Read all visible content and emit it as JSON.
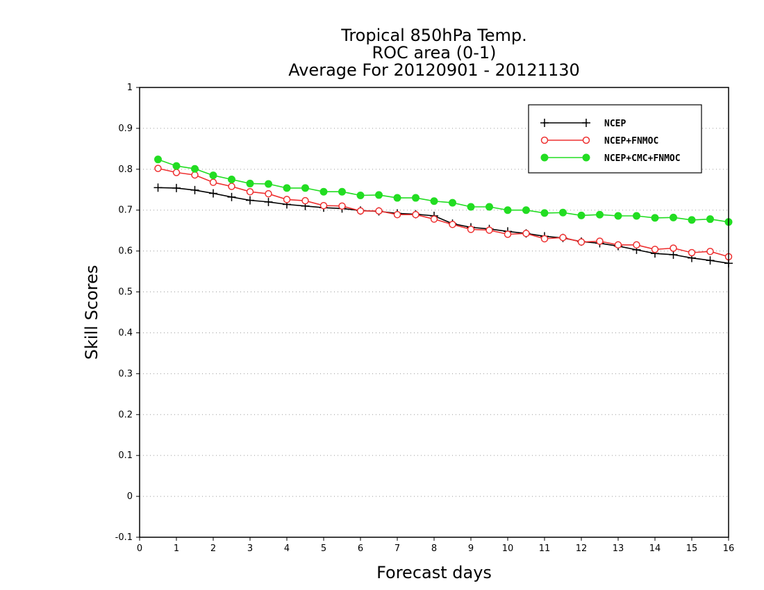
{
  "chart_data": {
    "type": "line",
    "title": [
      "Tropical 850hPa Temp.",
      "ROC area (0-1)",
      "Average For 20120901 - 20121130"
    ],
    "xlabel": "Forecast days",
    "ylabel": "Skill Scores",
    "xlim": [
      0,
      16
    ],
    "ylim": [
      -0.1,
      1
    ],
    "xticks": [
      0,
      1,
      2,
      3,
      4,
      5,
      6,
      7,
      8,
      9,
      10,
      11,
      12,
      13,
      14,
      15,
      16
    ],
    "yticks": [
      -0.1,
      0,
      0.1,
      0.2,
      0.3,
      0.4,
      0.5,
      0.6,
      0.7,
      0.8,
      0.9,
      1
    ],
    "ytick_labels": [
      "-0.1",
      "0",
      "0.1",
      "0.2",
      "0.3",
      "0.4",
      "0.5",
      "0.6",
      "0.7",
      "0.8",
      "0.9",
      "1"
    ],
    "grid": "horizontal-dotted",
    "legend_position": "top-right",
    "x": [
      0.5,
      1,
      1.5,
      2,
      2.5,
      3,
      3.5,
      4,
      4.5,
      5,
      5.5,
      6,
      6.5,
      7,
      7.5,
      8,
      8.5,
      9,
      9.5,
      10,
      10.5,
      11,
      11.5,
      12,
      12.5,
      13,
      13.5,
      14,
      14.5,
      15,
      15.5,
      16
    ],
    "series": [
      {
        "name": "NCEP",
        "color": "#000000",
        "marker": "plus",
        "values": [
          0.755,
          0.754,
          0.749,
          0.741,
          0.732,
          0.724,
          0.72,
          0.714,
          0.71,
          0.706,
          0.704,
          0.699,
          0.697,
          0.692,
          0.69,
          0.686,
          0.667,
          0.658,
          0.654,
          0.648,
          0.643,
          0.636,
          0.632,
          0.623,
          0.619,
          0.612,
          0.603,
          0.594,
          0.591,
          0.583,
          0.577,
          0.57
        ]
      },
      {
        "name": "NCEP+FNMOC",
        "color": "#ee3030",
        "marker": "open-circle",
        "values": [
          0.802,
          0.792,
          0.786,
          0.768,
          0.758,
          0.745,
          0.74,
          0.726,
          0.723,
          0.711,
          0.71,
          0.698,
          0.698,
          0.689,
          0.689,
          0.678,
          0.665,
          0.653,
          0.651,
          0.641,
          0.643,
          0.63,
          0.633,
          0.622,
          0.624,
          0.615,
          0.615,
          0.604,
          0.607,
          0.596,
          0.599,
          0.586
        ]
      },
      {
        "name": "NCEP+CMC+FNMOC",
        "color": "#22dd22",
        "marker": "filled-circle",
        "values": [
          0.824,
          0.808,
          0.801,
          0.785,
          0.775,
          0.765,
          0.764,
          0.754,
          0.754,
          0.745,
          0.745,
          0.736,
          0.737,
          0.73,
          0.73,
          0.722,
          0.718,
          0.708,
          0.708,
          0.7,
          0.7,
          0.693,
          0.694,
          0.687,
          0.689,
          0.686,
          0.686,
          0.681,
          0.682,
          0.676,
          0.678,
          0.671
        ]
      }
    ]
  }
}
